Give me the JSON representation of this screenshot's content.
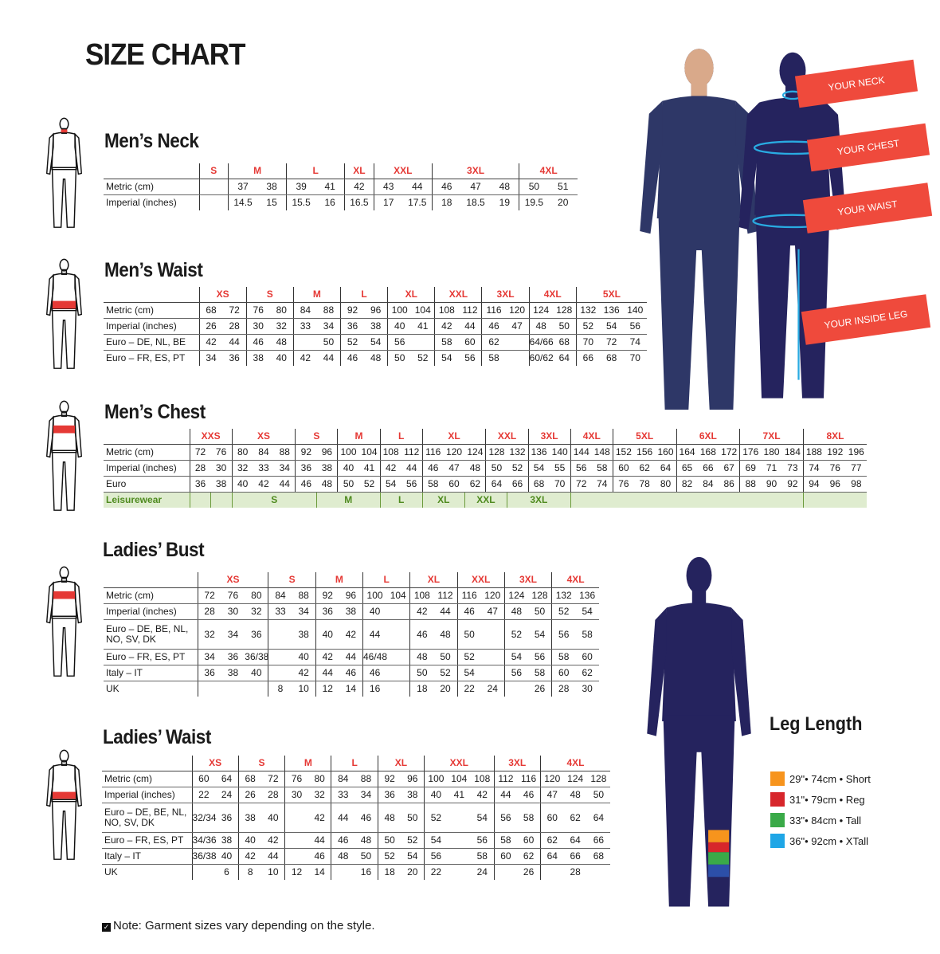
{
  "title": "SIZE CHART",
  "colors": {
    "size_label": "#e53935",
    "navy": "#25235e",
    "tag": "#ef4a3c",
    "measure_line": "#29abe2",
    "leisure_bg": "#dfeccf",
    "leisure_text": "#4e8a1e"
  },
  "measure_tags": [
    "YOUR NECK",
    "YOUR CHEST",
    "YOUR WAIST",
    "YOUR INSIDE LEG"
  ],
  "tables": [
    {
      "heading": "Men’s Neck",
      "groups": [
        {
          "label": "S",
          "span": 1
        },
        {
          "label": "M",
          "span": 2
        },
        {
          "label": "L",
          "span": 2
        },
        {
          "label": "XL",
          "span": 1
        },
        {
          "label": "XXL",
          "span": 2
        },
        {
          "label": "3XL",
          "span": 3
        },
        {
          "label": "4XL",
          "span": 2
        }
      ],
      "rows": [
        {
          "label": "Metric (cm)",
          "cells": [
            "",
            "37",
            "38",
            "39",
            "41",
            "42",
            "43",
            "44",
            "46",
            "47",
            "48",
            "50",
            "51"
          ]
        },
        {
          "label": "Imperial (inches)",
          "cells": [
            "",
            "14.5",
            "15",
            "15.5",
            "16",
            "16.5",
            "17",
            "17.5",
            "18",
            "18.5",
            "19",
            "19.5",
            "20"
          ]
        }
      ]
    },
    {
      "heading": "Men’s Waist",
      "groups": [
        {
          "label": "XS",
          "span": 2
        },
        {
          "label": "S",
          "span": 2
        },
        {
          "label": "M",
          "span": 2
        },
        {
          "label": "L",
          "span": 2
        },
        {
          "label": "XL",
          "span": 2
        },
        {
          "label": "XXL",
          "span": 2
        },
        {
          "label": "3XL",
          "span": 2
        },
        {
          "label": "4XL",
          "span": 2
        },
        {
          "label": "5XL",
          "span": 3
        }
      ],
      "rows": [
        {
          "label": "Metric (cm)",
          "cells": [
            "68",
            "72",
            "76",
            "80",
            "84",
            "88",
            "92",
            "96",
            "100",
            "104",
            "108",
            "112",
            "116",
            "120",
            "124",
            "128",
            "132",
            "136",
            "140"
          ]
        },
        {
          "label": "Imperial (inches)",
          "cells": [
            "26",
            "28",
            "30",
            "32",
            "33",
            "34",
            "36",
            "38",
            "40",
            "41",
            "42",
            "44",
            "46",
            "47",
            "48",
            "50",
            "52",
            "54",
            "56"
          ]
        },
        {
          "label": "Euro – DE, NL, BE",
          "cells": [
            "42",
            "44",
            "46",
            "48",
            "",
            "50",
            "52",
            "54",
            "56",
            "",
            "58",
            "60",
            "62",
            "",
            "64/66",
            "68",
            "70",
            "72",
            "74"
          ]
        },
        {
          "label": "Euro – FR, ES, PT",
          "cells": [
            "34",
            "36",
            "38",
            "40",
            "42",
            "44",
            "46",
            "48",
            "50",
            "52",
            "54",
            "56",
            "58",
            "",
            "60/62",
            "64",
            "66",
            "68",
            "70"
          ]
        }
      ]
    },
    {
      "heading": "Men’s Chest",
      "groups": [
        {
          "label": "XXS",
          "span": 2
        },
        {
          "label": "XS",
          "span": 3
        },
        {
          "label": "S",
          "span": 2
        },
        {
          "label": "M",
          "span": 2
        },
        {
          "label": "L",
          "span": 2
        },
        {
          "label": "XL",
          "span": 3
        },
        {
          "label": "XXL",
          "span": 2
        },
        {
          "label": "3XL",
          "span": 2
        },
        {
          "label": "4XL",
          "span": 2
        },
        {
          "label": "5XL",
          "span": 3
        },
        {
          "label": "6XL",
          "span": 3
        },
        {
          "label": "7XL",
          "span": 3
        },
        {
          "label": "8XL",
          "span": 3
        }
      ],
      "rows": [
        {
          "label": "Metric (cm)",
          "cells": [
            "72",
            "76",
            "80",
            "84",
            "88",
            "92",
            "96",
            "100",
            "104",
            "108",
            "112",
            "116",
            "120",
            "124",
            "128",
            "132",
            "136",
            "140",
            "144",
            "148",
            "152",
            "156",
            "160",
            "164",
            "168",
            "172",
            "176",
            "180",
            "184",
            "188",
            "192",
            "196"
          ]
        },
        {
          "label": "Imperial (inches)",
          "cells": [
            "28",
            "30",
            "32",
            "33",
            "34",
            "36",
            "38",
            "40",
            "41",
            "42",
            "44",
            "46",
            "47",
            "48",
            "50",
            "52",
            "54",
            "55",
            "56",
            "58",
            "60",
            "62",
            "64",
            "65",
            "66",
            "67",
            "69",
            "71",
            "73",
            "74",
            "76",
            "77"
          ]
        },
        {
          "label": "Euro",
          "cells": [
            "36",
            "38",
            "40",
            "42",
            "44",
            "46",
            "48",
            "50",
            "52",
            "54",
            "56",
            "58",
            "60",
            "62",
            "64",
            "66",
            "68",
            "70",
            "72",
            "74",
            "76",
            "78",
            "80",
            "82",
            "84",
            "86",
            "88",
            "90",
            "92",
            "94",
            "96",
            "98"
          ]
        },
        {
          "label": "Leisurewear",
          "leisure": true,
          "spans": [
            {
              "text": "",
              "span": 1
            },
            {
              "text": "",
              "span": 1
            },
            {
              "text": "S",
              "span": 4
            },
            {
              "text": "M",
              "span": 3
            },
            {
              "text": "L",
              "span": 2
            },
            {
              "text": "XL",
              "span": 2
            },
            {
              "text": "XXL",
              "span": 2
            },
            {
              "text": "3XL",
              "span": 3
            },
            {
              "text": "",
              "span": 11
            },
            {
              "text": "",
              "span": 3
            }
          ]
        }
      ]
    },
    {
      "heading": "Ladies’ Bust",
      "groups": [
        {
          "label": "XS",
          "span": 3
        },
        {
          "label": "S",
          "span": 2
        },
        {
          "label": "M",
          "span": 2
        },
        {
          "label": "L",
          "span": 2
        },
        {
          "label": "XL",
          "span": 2
        },
        {
          "label": "XXL",
          "span": 2
        },
        {
          "label": "3XL",
          "span": 2
        },
        {
          "label": "4XL",
          "span": 2
        }
      ],
      "rows": [
        {
          "label": "Metric (cm)",
          "cells": [
            "72",
            "76",
            "80",
            "84",
            "88",
            "92",
            "96",
            "100",
            "104",
            "108",
            "112",
            "116",
            "120",
            "124",
            "128",
            "132",
            "136"
          ]
        },
        {
          "label": "Imperial (inches)",
          "cells": [
            "28",
            "30",
            "32",
            "33",
            "34",
            "36",
            "38",
            "40",
            "",
            "42",
            "44",
            "46",
            "47",
            "48",
            "50",
            "52",
            "54"
          ]
        },
        {
          "label": "Euro –  DE, BE, NL, NO, SV, DK",
          "tall": true,
          "cells": [
            "32",
            "34",
            "36",
            "",
            "38",
            "40",
            "42",
            "44",
            "",
            "46",
            "48",
            "50",
            "",
            "52",
            "54",
            "56",
            "58"
          ]
        },
        {
          "label": "Euro – FR, ES, PT",
          "cells": [
            "34",
            "36",
            "36/38",
            "",
            "40",
            "42",
            "44",
            "46/48",
            "",
            "48",
            "50",
            "52",
            "",
            "54",
            "56",
            "58",
            "60"
          ]
        },
        {
          "label": "Italy – IT",
          "cells": [
            "36",
            "38",
            "40",
            "",
            "42",
            "44",
            "46",
            "46",
            "",
            "50",
            "52",
            "54",
            "",
            "56",
            "58",
            "60",
            "62"
          ]
        },
        {
          "label": "UK",
          "cells": [
            "",
            "",
            "",
            "8",
            "10",
            "12",
            "14",
            "16",
            "",
            "18",
            "20",
            "22",
            "24",
            "",
            "26",
            "28",
            "30"
          ]
        }
      ]
    },
    {
      "heading": "Ladies’ Waist",
      "groups": [
        {
          "label": "XS",
          "span": 2
        },
        {
          "label": "S",
          "span": 2
        },
        {
          "label": "M",
          "span": 2
        },
        {
          "label": "L",
          "span": 2
        },
        {
          "label": "XL",
          "span": 2
        },
        {
          "label": "XXL",
          "span": 3
        },
        {
          "label": "3XL",
          "span": 2
        },
        {
          "label": "4XL",
          "span": 3
        }
      ],
      "rows": [
        {
          "label": "Metric (cm)",
          "cells": [
            "60",
            "64",
            "68",
            "72",
            "76",
            "80",
            "84",
            "88",
            "92",
            "96",
            "100",
            "104",
            "108",
            "112",
            "116",
            "120",
            "124",
            "128"
          ]
        },
        {
          "label": "Imperial (inches)",
          "cells": [
            "22",
            "24",
            "26",
            "28",
            "30",
            "32",
            "33",
            "34",
            "36",
            "38",
            "40",
            "41",
            "42",
            "44",
            "46",
            "47",
            "48",
            "50"
          ]
        },
        {
          "label": "Euro – DE, BE, NL, NO, SV, DK",
          "tall": true,
          "cells": [
            "32/34",
            "36",
            "38",
            "40",
            "",
            "42",
            "44",
            "46",
            "48",
            "50",
            "52",
            "",
            "54",
            "56",
            "58",
            "60",
            "62",
            "64"
          ]
        },
        {
          "label": "Euro – FR, ES, PT",
          "cells": [
            "34/36",
            "38",
            "40",
            "42",
            "",
            "44",
            "46",
            "48",
            "50",
            "52",
            "54",
            "",
            "56",
            "58",
            "60",
            "62",
            "64",
            "66"
          ]
        },
        {
          "label": "Italy – IT",
          "cells": [
            "36/38",
            "40",
            "42",
            "44",
            "",
            "46",
            "48",
            "50",
            "52",
            "54",
            "56",
            "",
            "58",
            "60",
            "62",
            "64",
            "66",
            "68"
          ]
        },
        {
          "label": "UK",
          "cells": [
            "",
            "6",
            "8",
            "10",
            "12",
            "14",
            "",
            "16",
            "18",
            "20",
            "22",
            "",
            "24",
            "",
            "26",
            "",
            "28",
            ""
          ]
        }
      ]
    }
  ],
  "leg_length": {
    "heading": "Leg Length",
    "items": [
      {
        "text": "29\"• 74cm • Short",
        "color": "#f7941d"
      },
      {
        "text": "31\"• 79cm • Reg",
        "color": "#d7262b"
      },
      {
        "text": "33\"• 84cm • Tall",
        "color": "#3aaa48"
      },
      {
        "text": "36\"• 92cm • XTall",
        "color": "#1fa6e6"
      }
    ]
  },
  "note": "Note: Garment sizes vary depending on the style."
}
